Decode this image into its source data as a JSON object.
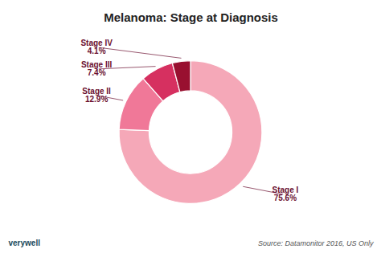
{
  "chart_data": {
    "type": "pie",
    "title": "Melanoma: Stage at Diagnosis",
    "categories": [
      "Stage I",
      "Stage II",
      "Stage III",
      "Stage IV"
    ],
    "values": [
      75.6,
      12.9,
      7.4,
      4.1
    ],
    "value_labels": [
      "75.6%",
      "12.9%",
      "7.4%",
      "4.1%"
    ],
    "colors": [
      "#f5a8b8",
      "#f07898",
      "#d63060",
      "#991030"
    ],
    "data_labels": true,
    "annotations": [
      "Source: Datamonitor 2016, US Only",
      "verywell"
    ]
  }
}
